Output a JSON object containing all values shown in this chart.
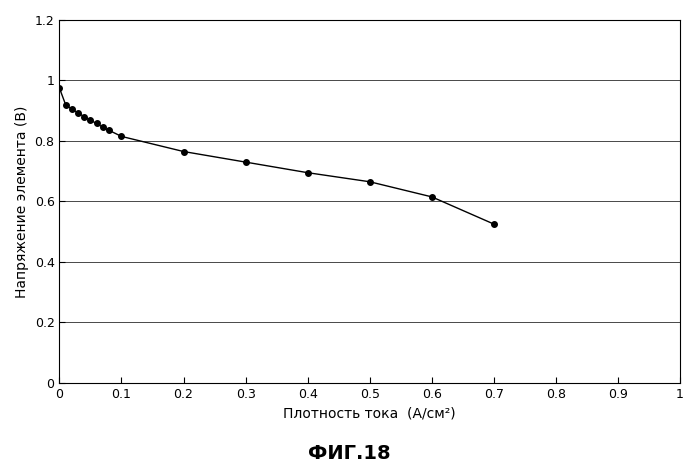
{
  "x": [
    0.0,
    0.01,
    0.02,
    0.03,
    0.04,
    0.05,
    0.06,
    0.07,
    0.08,
    0.1,
    0.2,
    0.3,
    0.4,
    0.5,
    0.6,
    0.7
  ],
  "y": [
    0.975,
    0.92,
    0.905,
    0.893,
    0.88,
    0.868,
    0.858,
    0.845,
    0.835,
    0.815,
    0.765,
    0.73,
    0.695,
    0.665,
    0.615,
    0.525
  ],
  "line_color": "#000000",
  "marker_color": "#000000",
  "marker_style": "o",
  "marker_size": 4,
  "line_width": 1.0,
  "xlabel": "Плотность тока  (А/см²)",
  "ylabel": "Напряжение элемента (В)",
  "caption": "ФИГ.18",
  "xlim": [
    0,
    1.0
  ],
  "ylim": [
    0,
    1.2
  ],
  "xticks": [
    0,
    0.1,
    0.2,
    0.3,
    0.4,
    0.5,
    0.6,
    0.7,
    0.8,
    0.9,
    1.0
  ],
  "yticks": [
    0,
    0.2,
    0.4,
    0.6,
    0.8,
    1.0,
    1.2
  ],
  "background_color": "#ffffff",
  "grid_color": "#000000",
  "grid_alpha": 1.0,
  "grid_linewidth": 0.5,
  "tick_fontsize": 9,
  "label_fontsize": 10,
  "caption_fontsize": 14
}
